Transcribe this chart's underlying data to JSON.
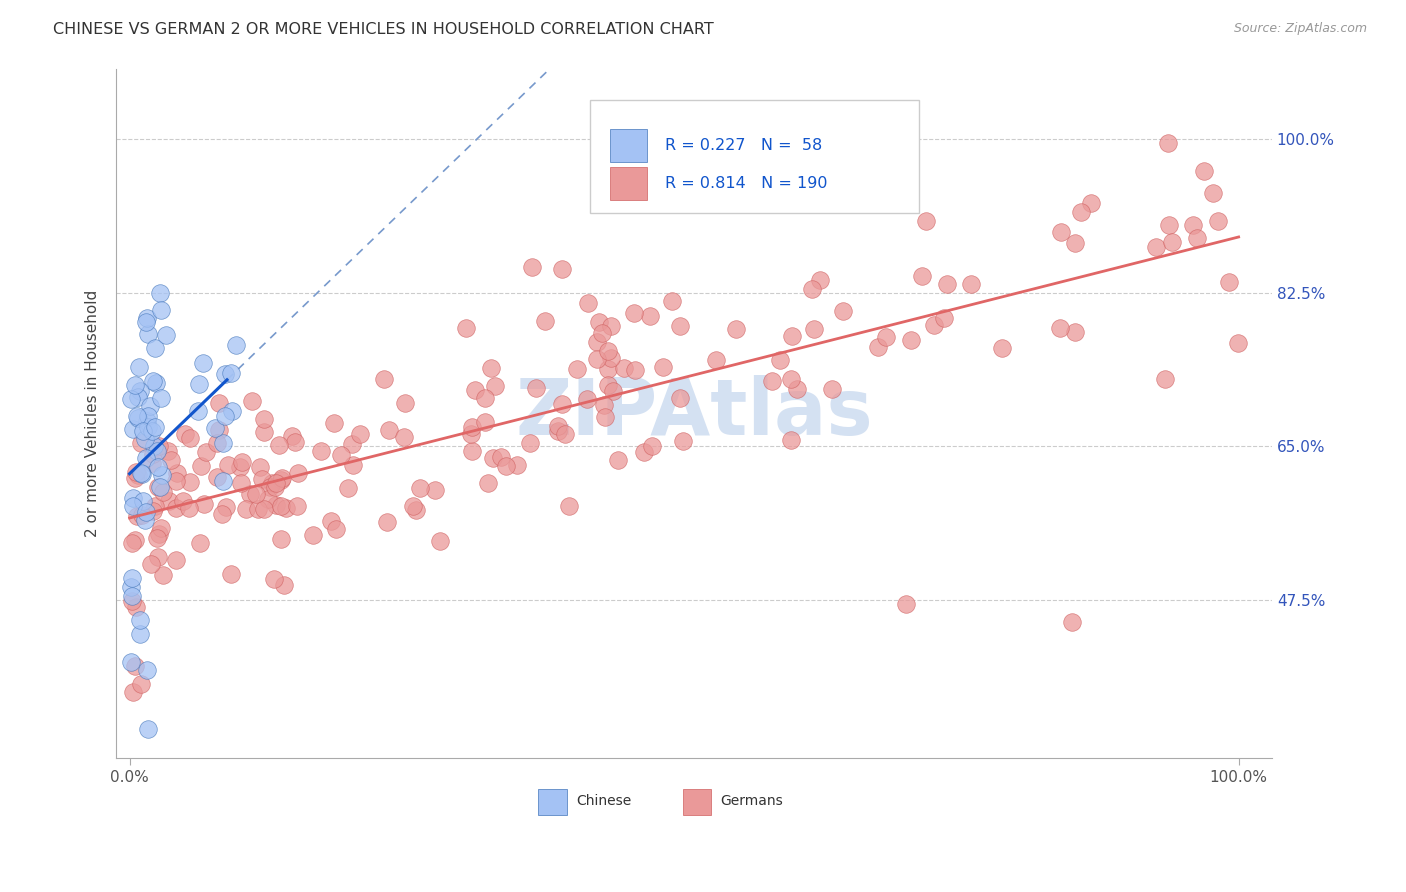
{
  "title": "CHINESE VS GERMAN 2 OR MORE VEHICLES IN HOUSEHOLD CORRELATION CHART",
  "source": "Source: ZipAtlas.com",
  "ylabel": "2 or more Vehicles in Household",
  "chinese_color": "#a4c2f4",
  "german_color": "#ea9999",
  "chinese_line_color": "#1155cc",
  "german_line_color": "#e06666",
  "chinese_R": 0.227,
  "chinese_N": 58,
  "german_R": 0.814,
  "german_N": 190,
  "xlim": [
    -0.012,
    1.03
  ],
  "ylim": [
    0.295,
    1.08
  ],
  "ytick_values": [
    0.475,
    0.65,
    0.825,
    1.0
  ],
  "ytick_labels": [
    "47.5%",
    "65.0%",
    "82.5%",
    "100.0%"
  ],
  "grid_color": "#cccccc",
  "watermark_color": "#cddcf0",
  "legend_box_color": "#dddddd",
  "bottom_legend": [
    "Chinese",
    "Germans"
  ]
}
